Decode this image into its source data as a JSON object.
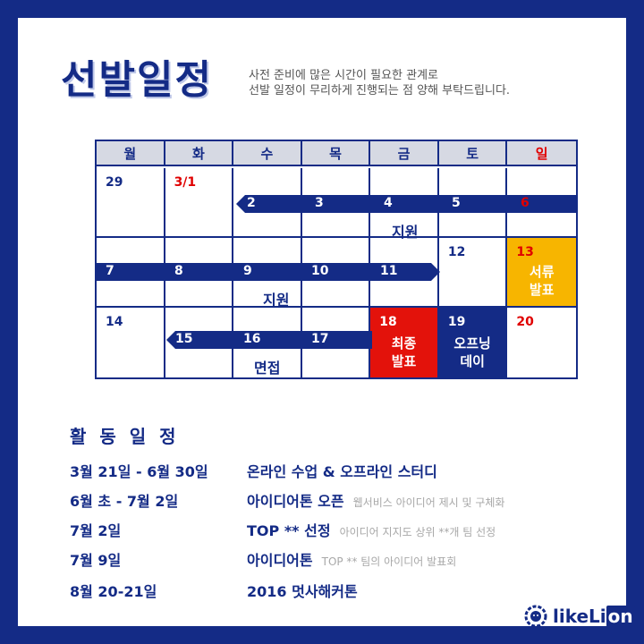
{
  "header": {
    "title": "선발일정",
    "subtitle_line1": "사전 준비에 많은 시간이 필요한 관계로",
    "subtitle_line2": "선발 일정이 무리하게 진행되는 점 양해 부탁드립니다."
  },
  "calendar": {
    "weekdays": [
      "월",
      "화",
      "수",
      "목",
      "금",
      "토",
      "일"
    ],
    "weeks": [
      [
        "29",
        "3/1",
        "2",
        "3",
        "4",
        "5",
        "6"
      ],
      [
        "7",
        "8",
        "9",
        "10",
        "11",
        "12",
        "13"
      ],
      [
        "14",
        "15",
        "16",
        "17",
        "18",
        "19",
        "20"
      ]
    ],
    "events": {
      "apply1": "지원",
      "apply2": "지원",
      "doc_result_line1": "서류",
      "doc_result_line2": "발표",
      "interview": "면접",
      "final_line1": "최종",
      "final_line2": "발표",
      "opening_line1": "오프닝",
      "opening_line2": "데이"
    },
    "colors": {
      "navy": "#142b86",
      "yellow": "#f7b500",
      "red": "#e3120b",
      "sunday": "#e00000"
    }
  },
  "activities": {
    "title": "활 동 일 정",
    "items": [
      {
        "date": "3월 21일 - 6월 30일",
        "desc": "온라인 수업 & 오프라인 스터디",
        "note": ""
      },
      {
        "date": "6월 초 - 7월 2일",
        "desc": "아이디어톤 오픈",
        "note": "웹서비스 아이디어 제시 및 구체화"
      },
      {
        "date": "7월 2일",
        "desc": "TOP ** 선정",
        "note": "아이디어 지지도 상위 **개 팀 선정"
      },
      {
        "date": "7월 9일",
        "desc": "아이디어톤",
        "note": "TOP ** 팀의 아이디어 발표회"
      },
      {
        "date": "8월 20-21일",
        "desc": "2016 멋사해커톤",
        "note": ""
      }
    ]
  },
  "logo": {
    "text_main": "likeLi",
    "text_box": "on",
    "icon": "lion-icon"
  }
}
